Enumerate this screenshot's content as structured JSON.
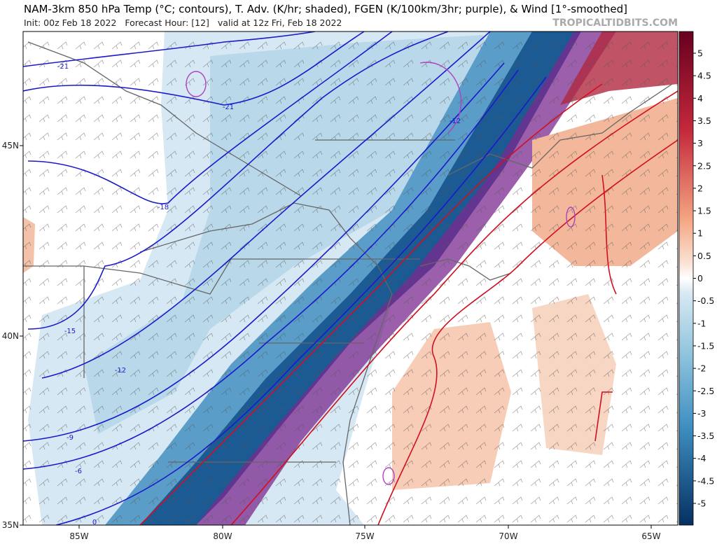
{
  "header": {
    "title": "NAM-3km 850 hPa Temp (°C; contours), T. Adv. (K/hr; shaded), FGEN (K/100km/3hr; purple), & Wind [1°-smoothed]",
    "init": "Init: 00z Feb 18 2022   Forecast Hour: [12]   valid at 12z Fri, Feb 18 2022",
    "watermark": "TROPICALTIDBITS.COM"
  },
  "colorbar": {
    "ticks": [
      5,
      4.5,
      4,
      3.5,
      3,
      2.5,
      2,
      1.5,
      1,
      0.5,
      0,
      -0.5,
      -1,
      -1.5,
      -2,
      -2.5,
      -3,
      -3.5,
      -4,
      -4.5,
      -5
    ]
  },
  "map": {
    "lon_labels": [
      "85W",
      "80W",
      "75W",
      "70W",
      "65W"
    ],
    "lat_labels": [
      "45N",
      "40N",
      "35N"
    ],
    "contour_labels": [
      "-21",
      "-21",
      "-18",
      "-15",
      "-12",
      "-12",
      "-9",
      "-6",
      "0"
    ]
  }
}
